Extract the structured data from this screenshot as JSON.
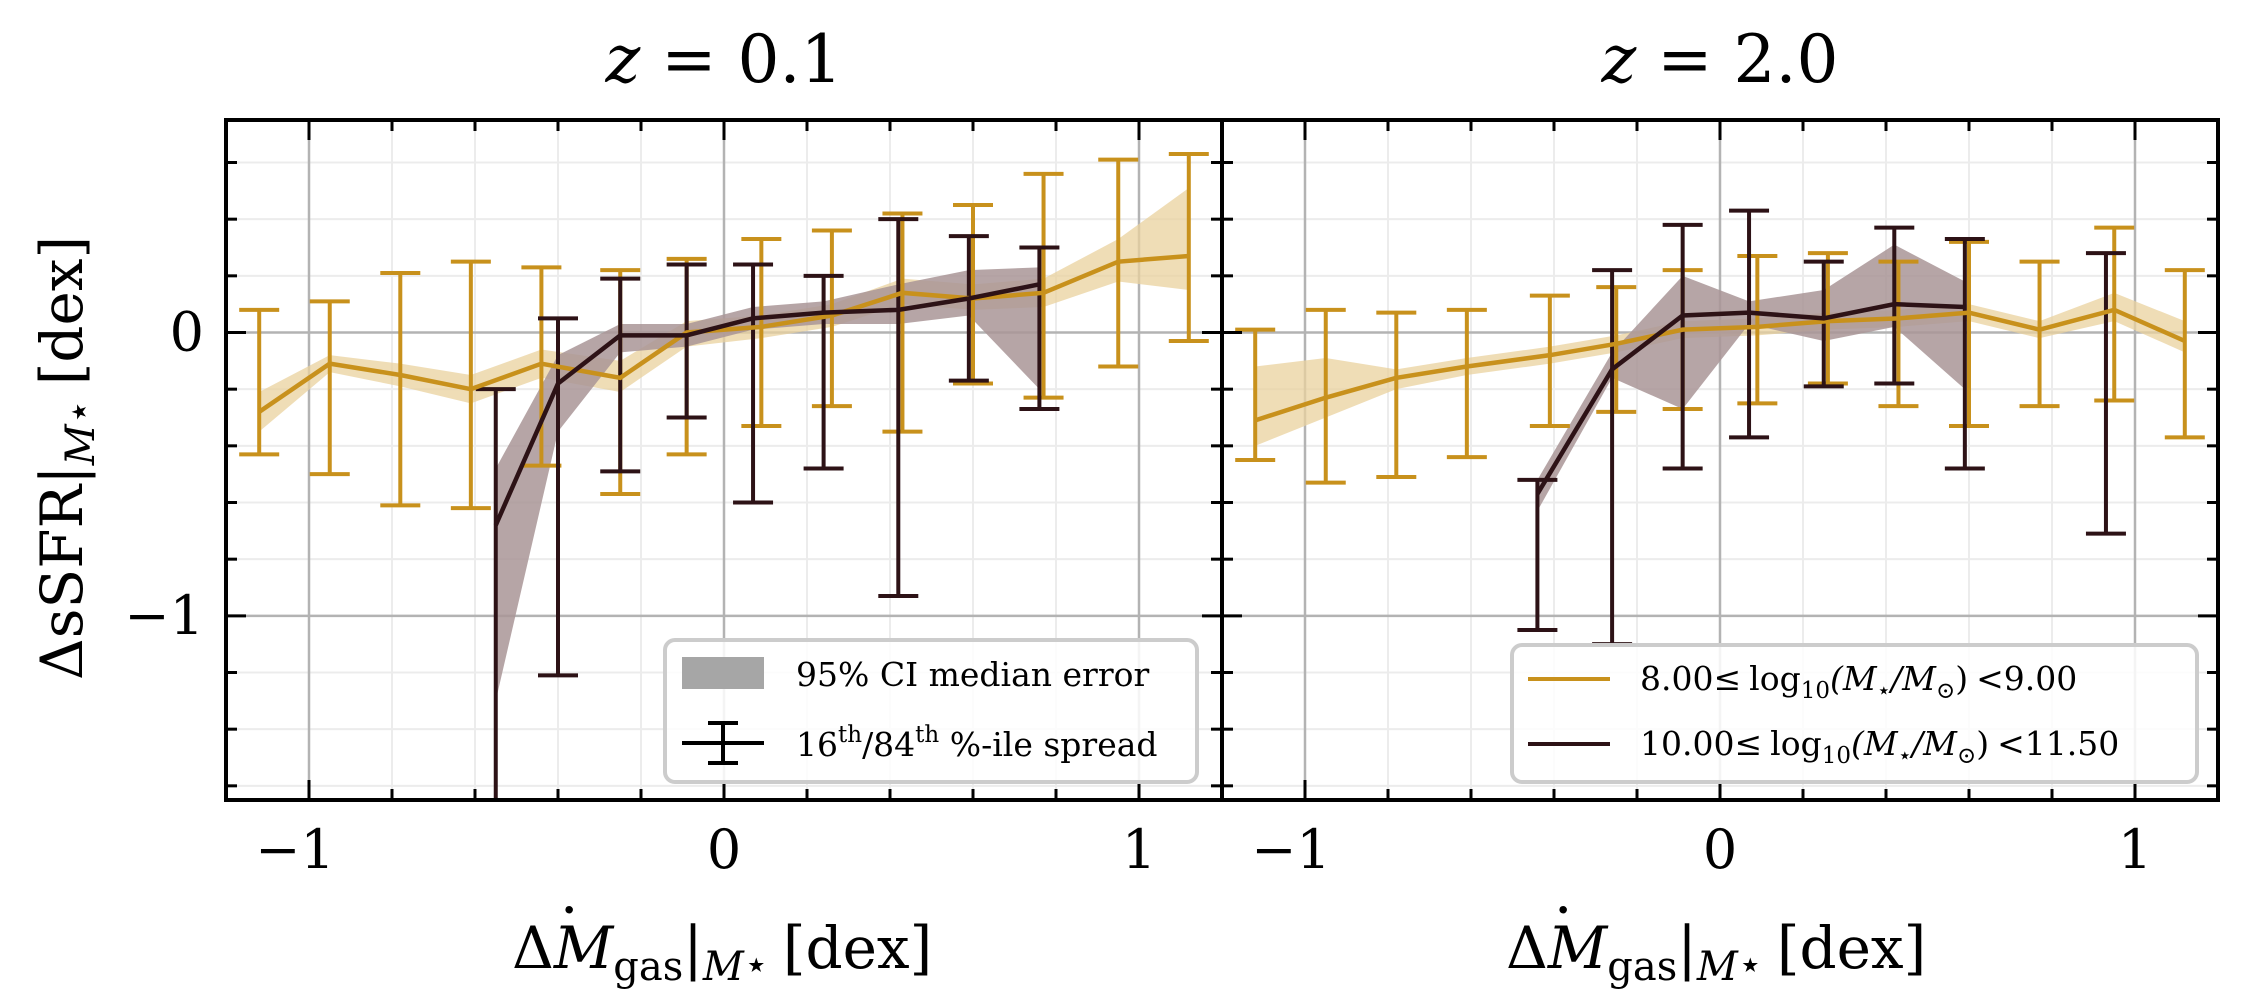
{
  "colors": {
    "low_mass": "#C8911C",
    "low_mass_band": "#E9D29D",
    "high_mass": "#2D1216",
    "high_mass_band": "#A99597",
    "grid": "#b3b3b3",
    "minor_grid": "#ececec",
    "legend_patch": "#a6a6a6",
    "legend_border": "#cccccc"
  },
  "legend_left": {
    "band_label": "95% CI median error",
    "errorbar_label_pre": "16",
    "errorbar_sup1": "th",
    "errorbar_mid": "/84",
    "errorbar_sup2": "th",
    "errorbar_post": " %-ile spread"
  },
  "legend_right": {
    "entries": [
      {
        "lo": "8.00",
        "hi": "<9.00",
        "color_key": "low_mass"
      },
      {
        "lo": "10.00",
        "hi": "<11.50",
        "color_key": "high_mass"
      }
    ],
    "le_symbol": "≤",
    "log_text": "log",
    "log_sub": "10",
    "ratio_open": "(M",
    "star": "⋆",
    "slash": "/M",
    "sun": "⊙",
    "ratio_close": ")"
  },
  "axis_text": {
    "delta": "Δ",
    "ssfr": "sSFR",
    "dex": "[dex]",
    "pipe": "|",
    "m": "M",
    "star": "⋆",
    "mdot": "M",
    "mdot_dot": "·",
    "gas": "gas"
  },
  "chart_data": [
    {
      "type": "line",
      "title": "z = 0.1",
      "title_var": "z",
      "title_eq": " = 0.1",
      "xlabel": "ΔṀgas|M⋆ [dex]",
      "ylabel": "ΔsSFR|M⋆ [dex]",
      "xlim": [
        -1.2,
        1.2
      ],
      "ylim": [
        -1.65,
        0.75
      ],
      "xticks": [
        -1,
        0,
        1
      ],
      "xtick_labels": [
        "−1",
        "0",
        "1"
      ],
      "yticks": [
        -1,
        0
      ],
      "ytick_labels": [
        "−1",
        "0"
      ],
      "grid": true,
      "series": [
        {
          "name": "8.00≤ log10(M⋆/M⊙) <9.00",
          "color_key": "low_mass",
          "band_color_key": "low_mass_band",
          "x": [
            -1.12,
            -0.95,
            -0.78,
            -0.61,
            -0.44,
            -0.25,
            -0.09,
            0.09,
            0.26,
            0.43,
            0.6,
            0.77,
            0.95,
            1.12
          ],
          "y": [
            -0.28,
            -0.11,
            -0.15,
            -0.2,
            -0.11,
            -0.16,
            0.0,
            0.02,
            0.06,
            0.14,
            0.12,
            0.14,
            0.25,
            0.27
          ],
          "band_lo": [
            -0.35,
            -0.14,
            -0.19,
            -0.25,
            -0.16,
            -0.21,
            -0.05,
            -0.02,
            0.02,
            0.1,
            0.08,
            0.09,
            0.18,
            0.15
          ],
          "band_hi": [
            -0.21,
            -0.08,
            -0.11,
            -0.15,
            -0.06,
            -0.1,
            0.04,
            0.06,
            0.1,
            0.19,
            0.17,
            0.19,
            0.33,
            0.51
          ],
          "err_lo": [
            -0.43,
            -0.5,
            -0.61,
            -0.62,
            -0.47,
            -0.57,
            -0.43,
            -0.33,
            -0.26,
            -0.35,
            -0.18,
            -0.23,
            -0.12,
            -0.03
          ],
          "err_hi": [
            0.08,
            0.11,
            0.21,
            0.25,
            0.23,
            0.22,
            0.26,
            0.33,
            0.36,
            0.42,
            0.45,
            0.56,
            0.61,
            0.63
          ]
        },
        {
          "name": "10.00≤ log10(M⋆/M⊙) <11.50",
          "color_key": "high_mass",
          "band_color_key": "high_mass_band",
          "x": [
            -0.55,
            -0.4,
            -0.25,
            -0.09,
            0.07,
            0.24,
            0.42,
            0.59,
            0.76
          ],
          "y": [
            -0.68,
            -0.18,
            -0.01,
            -0.01,
            0.05,
            0.07,
            0.08,
            0.12,
            0.17
          ],
          "band_lo": [
            -1.3,
            -0.35,
            -0.07,
            -0.05,
            0.01,
            0.03,
            0.03,
            0.06,
            -0.2
          ],
          "band_hi": [
            -0.48,
            -0.08,
            0.03,
            0.03,
            0.09,
            0.11,
            0.17,
            0.22,
            0.23
          ],
          "err_lo": [
            -1.65,
            -1.21,
            -0.49,
            -0.3,
            -0.6,
            -0.48,
            -0.93,
            -0.17,
            -0.27
          ],
          "err_hi": [
            -0.2,
            0.05,
            0.19,
            0.24,
            0.24,
            0.2,
            0.4,
            0.34,
            0.3
          ]
        }
      ]
    },
    {
      "type": "line",
      "title": "z = 2.0",
      "title_var": "z",
      "title_eq": " = 2.0",
      "xlabel": "ΔṀgas|M⋆ [dex]",
      "ylabel": "",
      "xlim": [
        -1.2,
        1.2
      ],
      "ylim": [
        -1.65,
        0.75
      ],
      "xticks": [
        -1,
        0,
        1
      ],
      "xtick_labels": [
        "−1",
        "0",
        "1"
      ],
      "yticks": [
        -1,
        0
      ],
      "ytick_labels": [],
      "grid": true,
      "series": [
        {
          "name": "8.00≤ log10(M⋆/M⊙) <9.00",
          "color_key": "low_mass",
          "band_color_key": "low_mass_band",
          "x": [
            -1.12,
            -0.95,
            -0.78,
            -0.61,
            -0.41,
            -0.25,
            -0.09,
            0.09,
            0.26,
            0.43,
            0.6,
            0.77,
            0.95,
            1.12
          ],
          "y": [
            -0.31,
            -0.23,
            -0.16,
            -0.12,
            -0.08,
            -0.04,
            0.01,
            0.02,
            0.04,
            0.05,
            0.07,
            0.01,
            0.08,
            -0.03
          ],
          "band_lo": [
            -0.4,
            -0.3,
            -0.2,
            -0.15,
            -0.11,
            -0.07,
            -0.02,
            -0.01,
            0.01,
            0.02,
            0.04,
            -0.02,
            0.04,
            -0.07
          ],
          "band_hi": [
            -0.12,
            -0.09,
            -0.13,
            -0.09,
            -0.05,
            -0.01,
            0.04,
            0.05,
            0.07,
            0.08,
            0.1,
            0.04,
            0.14,
            0.04
          ],
          "err_lo": [
            -0.45,
            -0.53,
            -0.51,
            -0.44,
            -0.33,
            -0.28,
            -0.27,
            -0.25,
            -0.18,
            -0.26,
            -0.33,
            -0.26,
            -0.24,
            -0.37
          ],
          "err_hi": [
            0.01,
            0.08,
            0.07,
            0.08,
            0.13,
            0.16,
            0.22,
            0.27,
            0.28,
            0.25,
            0.32,
            0.25,
            0.37,
            0.22
          ]
        },
        {
          "name": "10.00≤ log10(M⋆/M⊙) <11.50",
          "color_key": "high_mass",
          "band_color_key": "high_mass_band",
          "x": [
            -0.44,
            -0.26,
            -0.09,
            0.07,
            0.25,
            0.42,
            0.59
          ],
          "y": [
            -0.57,
            -0.13,
            0.06,
            0.07,
            0.05,
            0.1,
            0.09
          ],
          "band_lo": [
            -0.63,
            -0.16,
            -0.27,
            0.03,
            -0.03,
            0.02,
            -0.2
          ],
          "band_hi": [
            -0.52,
            -0.07,
            0.2,
            0.11,
            0.15,
            0.31,
            0.18
          ],
          "err_lo": [
            -1.05,
            -1.1,
            -0.48,
            -0.37,
            -0.19,
            -0.18,
            -0.48
          ],
          "err_hi": [
            -0.52,
            0.22,
            0.38,
            0.43,
            0.25,
            0.37,
            0.33
          ]
        }
      ],
      "extra_errorbars": [
        {
          "x": 0.93,
          "err_lo": -0.71,
          "err_hi": 0.28,
          "color_key": "high_mass"
        }
      ]
    }
  ]
}
